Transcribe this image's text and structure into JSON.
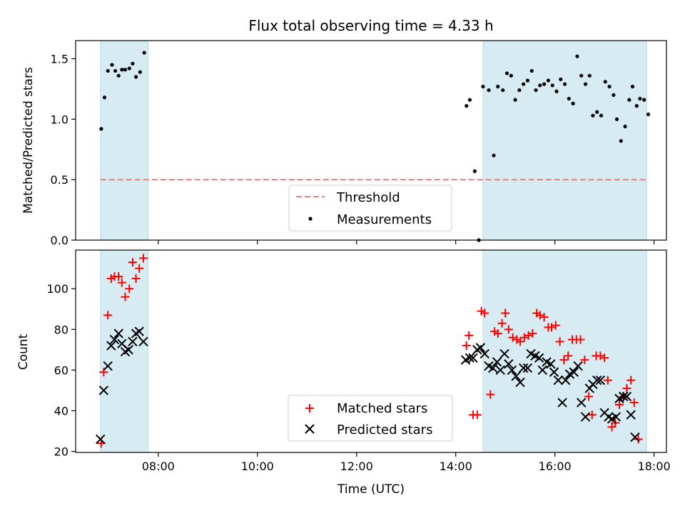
{
  "chart_data": [
    {
      "type": "scatter",
      "title": "Flux total observing time = 4.33 h",
      "ylabel": "Matched/Predicted stars",
      "xlim": [
        "06:20",
        "18:15"
      ],
      "ylim": [
        0,
        1.65
      ],
      "yticks": [
        "0.0",
        "0.5",
        "1.0",
        "1.5"
      ],
      "grid": false,
      "legend_position": "lower center",
      "shaded_intervals": [
        [
          "06:50",
          "07:48"
        ],
        [
          "14:33",
          "17:51"
        ]
      ],
      "threshold": {
        "name": "Threshold",
        "value": 0.5,
        "x": [
          "06:50",
          "17:51"
        ],
        "color": "#f08080",
        "style": "dashed"
      },
      "series": [
        {
          "name": "Measurements",
          "color": "#000000",
          "points": [
            [
              "06:51",
              0.92
            ],
            [
              "06:55",
              1.18
            ],
            [
              "06:59",
              1.4
            ],
            [
              "07:04",
              1.45
            ],
            [
              "07:08",
              1.4
            ],
            [
              "07:12",
              1.36
            ],
            [
              "07:16",
              1.41
            ],
            [
              "07:20",
              1.41
            ],
            [
              "07:25",
              1.42
            ],
            [
              "07:29",
              1.46
            ],
            [
              "07:33",
              1.35
            ],
            [
              "07:38",
              1.39
            ],
            [
              "07:43",
              1.55
            ],
            [
              "14:13",
              1.11
            ],
            [
              "14:17",
              1.16
            ],
            [
              "14:23",
              0.57
            ],
            [
              "14:28",
              0.0
            ],
            [
              "14:33",
              1.27
            ],
            [
              "14:40",
              1.24
            ],
            [
              "14:46",
              0.7
            ],
            [
              "14:51",
              1.27
            ],
            [
              "14:57",
              1.24
            ],
            [
              "15:02",
              1.38
            ],
            [
              "15:07",
              1.36
            ],
            [
              "15:12",
              1.16
            ],
            [
              "15:17",
              1.24
            ],
            [
              "15:22",
              1.29
            ],
            [
              "15:27",
              1.32
            ],
            [
              "15:32",
              1.4
            ],
            [
              "15:37",
              1.24
            ],
            [
              "15:42",
              1.28
            ],
            [
              "15:47",
              1.29
            ],
            [
              "15:52",
              1.32
            ],
            [
              "15:57",
              1.28
            ],
            [
              "16:02",
              1.23
            ],
            [
              "16:07",
              1.33
            ],
            [
              "16:12",
              1.29
            ],
            [
              "16:17",
              1.17
            ],
            [
              "16:22",
              1.13
            ],
            [
              "16:27",
              1.52
            ],
            [
              "16:32",
              1.36
            ],
            [
              "16:37",
              1.29
            ],
            [
              "16:42",
              1.36
            ],
            [
              "16:46",
              1.03
            ],
            [
              "16:51",
              1.06
            ],
            [
              "16:56",
              1.03
            ],
            [
              "17:01",
              1.31
            ],
            [
              "17:06",
              1.27
            ],
            [
              "17:11",
              1.2
            ],
            [
              "17:15",
              1.0
            ],
            [
              "17:20",
              0.82
            ],
            [
              "17:25",
              0.94
            ],
            [
              "17:30",
              1.16
            ],
            [
              "17:34",
              1.27
            ],
            [
              "17:39",
              1.11
            ],
            [
              "17:43",
              1.17
            ],
            [
              "17:48",
              1.16
            ],
            [
              "17:53",
              1.04
            ]
          ]
        }
      ]
    },
    {
      "type": "scatter",
      "xlabel": "Time (UTC)",
      "ylabel": "Count",
      "xlim": [
        "06:20",
        "18:15"
      ],
      "ylim": [
        19.5,
        119
      ],
      "xticks": [
        "08:00",
        "10:00",
        "12:00",
        "14:00",
        "16:00",
        "18:00"
      ],
      "yticks": [
        "20",
        "40",
        "60",
        "80",
        "100"
      ],
      "grid": false,
      "legend_position": "lower center",
      "shaded_intervals": [
        [
          "06:50",
          "07:48"
        ],
        [
          "14:33",
          "17:51"
        ]
      ],
      "series": [
        {
          "name": "Matched stars",
          "color": "#ff0000",
          "marker": "plus",
          "points": [
            [
              "06:51",
              24
            ],
            [
              "06:54",
              59
            ],
            [
              "06:59",
              87
            ],
            [
              "07:03",
              105
            ],
            [
              "07:07",
              106
            ],
            [
              "07:12",
              106
            ],
            [
              "07:16",
              103
            ],
            [
              "07:20",
              96
            ],
            [
              "07:25",
              100
            ],
            [
              "07:29",
              113
            ],
            [
              "07:33",
              105
            ],
            [
              "07:37",
              110
            ],
            [
              "07:42",
              115
            ],
            [
              "14:13",
              72
            ],
            [
              "14:16",
              77
            ],
            [
              "14:21",
              38
            ],
            [
              "14:26",
              38
            ],
            [
              "14:31",
              89
            ],
            [
              "14:35",
              88
            ],
            [
              "14:42",
              48
            ],
            [
              "14:47",
              79
            ],
            [
              "14:51",
              78
            ],
            [
              "14:56",
              83
            ],
            [
              "15:00",
              88
            ],
            [
              "15:04",
              80
            ],
            [
              "15:09",
              76
            ],
            [
              "15:14",
              75
            ],
            [
              "15:18",
              74
            ],
            [
              "15:23",
              76
            ],
            [
              "15:28",
              77
            ],
            [
              "15:33",
              78
            ],
            [
              "15:38",
              88
            ],
            [
              "15:42",
              87
            ],
            [
              "15:47",
              86
            ],
            [
              "15:52",
              81
            ],
            [
              "15:56",
              81
            ],
            [
              "16:01",
              82
            ],
            [
              "16:06",
              74
            ],
            [
              "16:11",
              65
            ],
            [
              "16:16",
              67
            ],
            [
              "16:21",
              75
            ],
            [
              "16:26",
              75
            ],
            [
              "16:31",
              75
            ],
            [
              "16:36",
              65
            ],
            [
              "16:41",
              47
            ],
            [
              "16:45",
              38
            ],
            [
              "16:50",
              67
            ],
            [
              "16:55",
              67
            ],
            [
              "17:00",
              66
            ],
            [
              "17:04",
              55
            ],
            [
              "17:09",
              32
            ],
            [
              "17:13",
              34
            ],
            [
              "17:18",
              43
            ],
            [
              "17:23",
              47
            ],
            [
              "17:27",
              51
            ],
            [
              "17:32",
              55
            ],
            [
              "17:36",
              44
            ],
            [
              "17:41",
              26
            ]
          ]
        },
        {
          "name": "Predicted stars",
          "color": "#000000",
          "marker": "x",
          "points": [
            [
              "06:50",
              26
            ],
            [
              "06:54",
              50
            ],
            [
              "06:59",
              62
            ],
            [
              "07:03",
              72
            ],
            [
              "07:07",
              75
            ],
            [
              "07:12",
              78
            ],
            [
              "07:16",
              73
            ],
            [
              "07:20",
              69
            ],
            [
              "07:24",
              70
            ],
            [
              "07:29",
              74
            ],
            [
              "07:33",
              78
            ],
            [
              "07:37",
              79
            ],
            [
              "07:42",
              74
            ],
            [
              "14:12",
              65
            ],
            [
              "14:17",
              66
            ],
            [
              "14:21",
              66
            ],
            [
              "14:26",
              70
            ],
            [
              "14:30",
              71
            ],
            [
              "14:35",
              68
            ],
            [
              "14:40",
              62
            ],
            [
              "14:45",
              61
            ],
            [
              "14:50",
              64
            ],
            [
              "14:54",
              60
            ],
            [
              "14:59",
              68
            ],
            [
              "15:04",
              63
            ],
            [
              "15:08",
              60
            ],
            [
              "15:13",
              57
            ],
            [
              "15:18",
              54
            ],
            [
              "15:22",
              61
            ],
            [
              "15:27",
              61
            ],
            [
              "15:31",
              68
            ],
            [
              "15:36",
              67
            ],
            [
              "15:41",
              66
            ],
            [
              "15:45",
              60
            ],
            [
              "15:50",
              64
            ],
            [
              "15:55",
              63
            ],
            [
              "15:59",
              59
            ],
            [
              "16:04",
              55
            ],
            [
              "16:09",
              44
            ],
            [
              "16:13",
              55
            ],
            [
              "16:18",
              58
            ],
            [
              "16:23",
              59
            ],
            [
              "16:28",
              62
            ],
            [
              "16:32",
              44
            ],
            [
              "16:37",
              37
            ],
            [
              "16:42",
              51
            ],
            [
              "16:46",
              53
            ],
            [
              "16:51",
              55
            ],
            [
              "16:55",
              55
            ],
            [
              "17:00",
              39
            ],
            [
              "17:05",
              37
            ],
            [
              "17:09",
              36
            ],
            [
              "17:14",
              37
            ],
            [
              "17:18",
              46
            ],
            [
              "17:23",
              47
            ],
            [
              "17:27",
              47
            ],
            [
              "17:32",
              38
            ],
            [
              "17:37",
              27
            ]
          ]
        }
      ]
    }
  ]
}
